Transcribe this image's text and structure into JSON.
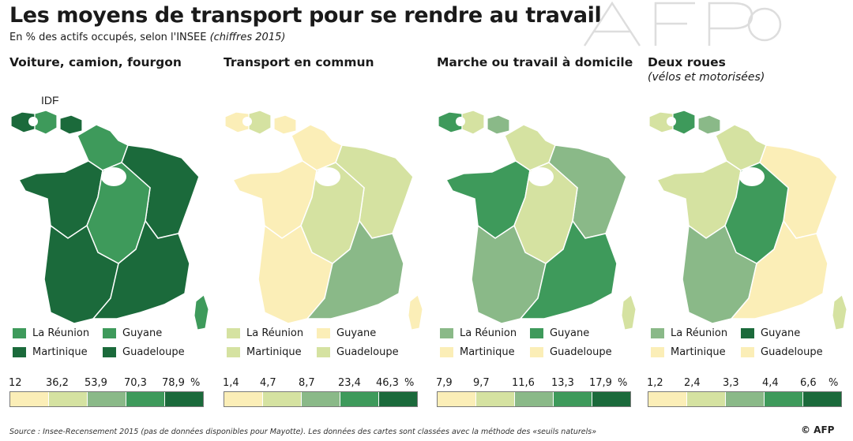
{
  "header": {
    "title": "Les moyens de transport pour se rendre au travail",
    "subtitle": "En % des actifs occupés, selon l'INSEE",
    "subtitle_note": "(chiffres 2015)"
  },
  "idf_label": "IDF",
  "panels": [
    {
      "title": "Voiture, camion, fourgon",
      "subtitle": "",
      "scale_labels": [
        "12",
        "36,2",
        "53,9",
        "70,3",
        "78,9",
        "%"
      ],
      "palette": [
        "#fbeeb7",
        "#d5e2a1",
        "#8ab988",
        "#3e9a5b",
        "#1b6a3b"
      ],
      "mainland_colors": [
        "#3e9a5b",
        "#1b6a3b",
        "#1b6a3b",
        "#3e9a5b",
        "#1b6a3b",
        "#1b6a3b"
      ],
      "dom": [
        {
          "name": "La Réunion",
          "color": "#3e9a5b"
        },
        {
          "name": "Guyane",
          "color": "#3e9a5b"
        },
        {
          "name": "Martinique",
          "color": "#1b6a3b"
        },
        {
          "name": "Guadeloupe",
          "color": "#1b6a3b"
        }
      ]
    },
    {
      "title": "Transport en commun",
      "subtitle": "",
      "scale_labels": [
        "1,4",
        "4,7",
        "8,7",
        "23,4",
        "46,3",
        "%"
      ],
      "palette": [
        "#fbeeb7",
        "#d5e2a1",
        "#8ab988",
        "#3e9a5b",
        "#1b6a3b"
      ],
      "mainland_colors": [
        "#fbeeb7",
        "#d5e2a1",
        "#fbeeb7",
        "#d5e2a1",
        "#fbeeb7",
        "#8ab988"
      ],
      "dom": [
        {
          "name": "La Réunion",
          "color": "#d5e2a1"
        },
        {
          "name": "Guyane",
          "color": "#fbeeb7"
        },
        {
          "name": "Martinique",
          "color": "#d5e2a1"
        },
        {
          "name": "Guadeloupe",
          "color": "#d5e2a1"
        }
      ]
    },
    {
      "title": "Marche ou travail à domicile",
      "subtitle": "",
      "scale_labels": [
        "7,9",
        "9,7",
        "11,6",
        "13,3",
        "17,9",
        "%"
      ],
      "palette": [
        "#fbeeb7",
        "#d5e2a1",
        "#8ab988",
        "#3e9a5b",
        "#1b6a3b"
      ],
      "mainland_colors": [
        "#d5e2a1",
        "#8ab988",
        "#3e9a5b",
        "#d5e2a1",
        "#8ab988",
        "#3e9a5b"
      ],
      "dom": [
        {
          "name": "La Réunion",
          "color": "#8ab988"
        },
        {
          "name": "Guyane",
          "color": "#3e9a5b"
        },
        {
          "name": "Martinique",
          "color": "#fbeeb7"
        },
        {
          "name": "Guadeloupe",
          "color": "#fbeeb7"
        }
      ]
    },
    {
      "title": "Deux roues",
      "subtitle": "(vélos et motorisées)",
      "scale_labels": [
        "1,2",
        "2,4",
        "3,3",
        "4,4",
        "6,6",
        "%"
      ],
      "palette": [
        "#fbeeb7",
        "#d5e2a1",
        "#8ab988",
        "#3e9a5b",
        "#1b6a3b"
      ],
      "mainland_colors": [
        "#d5e2a1",
        "#fbeeb7",
        "#d5e2a1",
        "#3e9a5b",
        "#8ab988",
        "#fbeeb7"
      ],
      "dom": [
        {
          "name": "La Réunion",
          "color": "#8ab988"
        },
        {
          "name": "Guyane",
          "color": "#1b6a3b"
        },
        {
          "name": "Martinique",
          "color": "#fbeeb7"
        },
        {
          "name": "Guadeloupe",
          "color": "#fbeeb7"
        }
      ]
    }
  ],
  "footer": {
    "source": "Source : Insee-Recensement 2015 (pas de données disponibles pour Mayotte). Les données des cartes sont classées avec la méthode des «seuils naturels»",
    "credit": "© AFP"
  }
}
